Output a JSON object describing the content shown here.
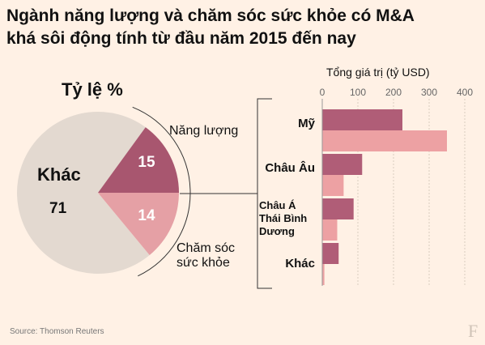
{
  "title_lines": [
    "Ngành năng lượng và chăm sóc sức khỏe có M&A",
    "khá sôi động tính từ đầu năm 2015 đến nay"
  ],
  "source": "Source: Thomson Reuters",
  "logo": "F",
  "colors": {
    "background": "#fff1e5",
    "pie_other": "#e3d9d0",
    "pie_energy": "#a8566f",
    "pie_health": "#e5a0a5",
    "bar_energy": "#b05d77",
    "bar_health": "#eda1a3"
  },
  "chart_data": [
    {
      "type": "pie",
      "title": "Tỷ lệ %",
      "slices": [
        {
          "label": "Khác",
          "value": 71
        },
        {
          "label": "Năng lượng",
          "value": 15
        },
        {
          "label": "Chăm sóc sức khỏe",
          "value": 14
        }
      ],
      "slice_labels": {
        "other_name": "Khác",
        "other_value": "71",
        "energy_value": "15",
        "health_value": "14",
        "energy_name": "Năng lượng",
        "health_name_lines": [
          "Chăm sóc",
          "sức khỏe"
        ]
      }
    },
    {
      "type": "bar",
      "orientation": "horizontal",
      "title": "Tổng giá trị (tỷ USD)",
      "xlim": [
        0,
        400
      ],
      "ticks": [
        0,
        100,
        200,
        300,
        400
      ],
      "categories": [
        {
          "lines": [
            "Mỹ"
          ]
        },
        {
          "lines": [
            "Châu Âu"
          ]
        },
        {
          "lines": [
            "Châu Á",
            "Thái Bình",
            "Dương"
          ]
        },
        {
          "lines": [
            "Khác"
          ]
        }
      ],
      "series": [
        {
          "values": [
            225,
            112,
            88,
            46
          ]
        },
        {
          "values": [
            350,
            60,
            42,
            6
          ]
        }
      ]
    }
  ]
}
